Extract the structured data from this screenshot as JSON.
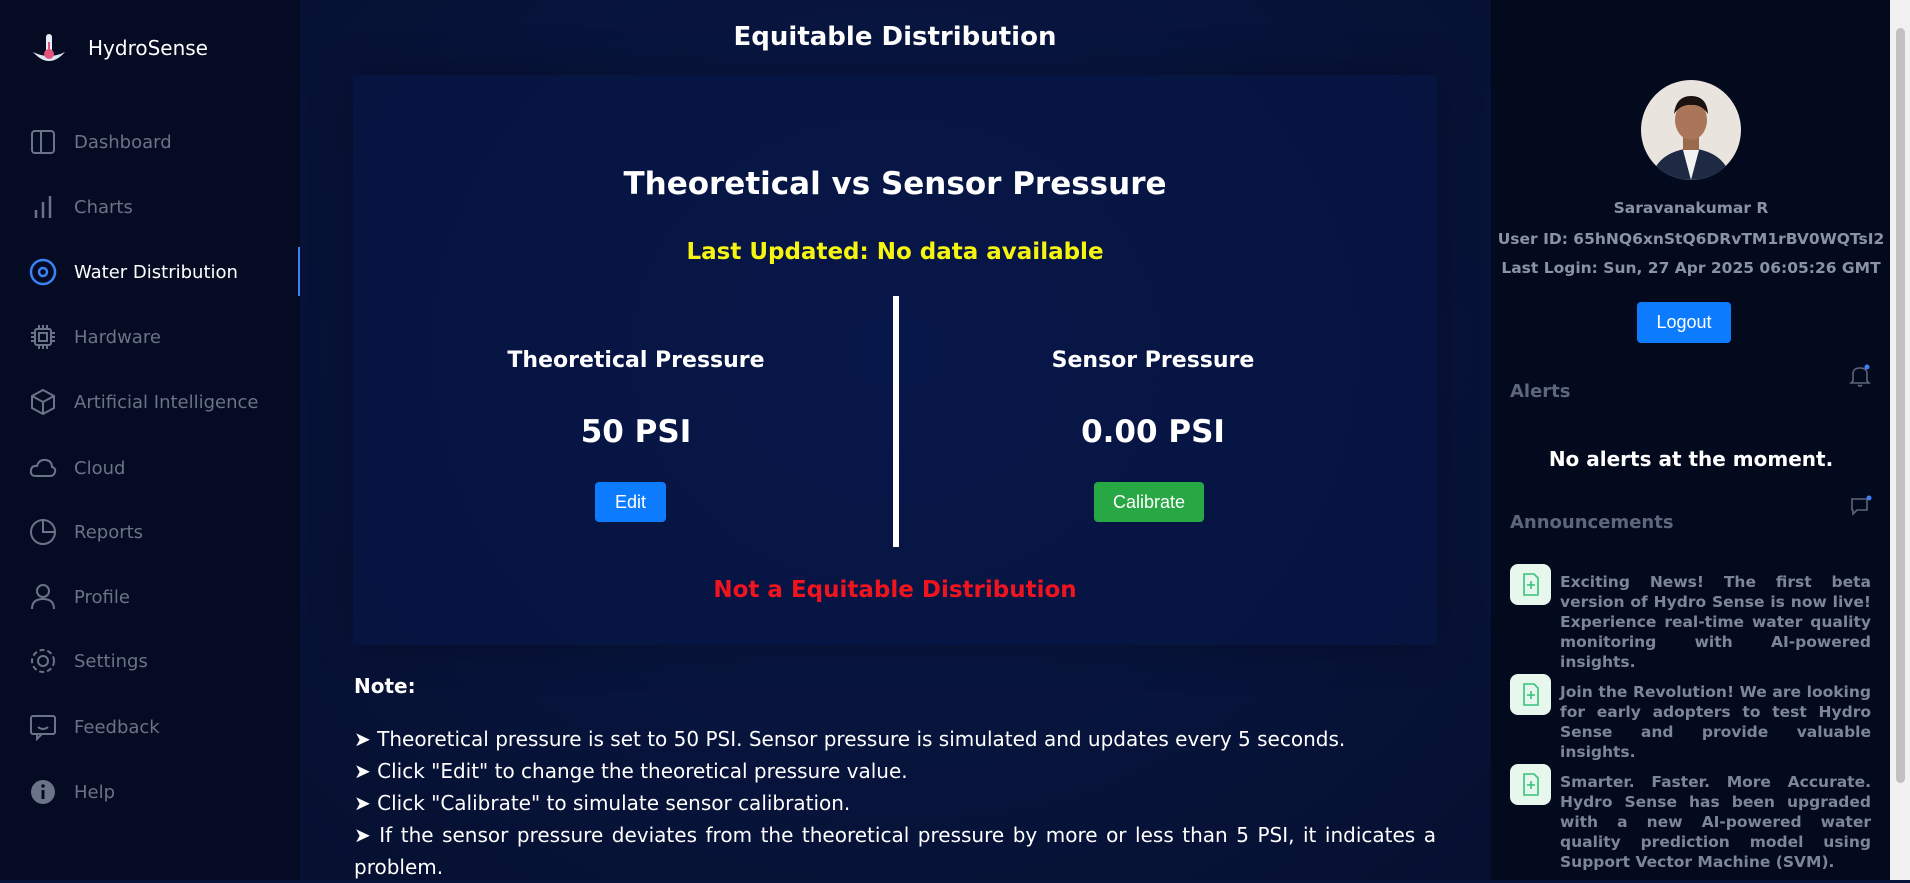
{
  "sidebar": {
    "brand": "HydroSense",
    "nav": [
      "Dashboard",
      "Charts",
      "Water Distribution",
      "Hardware",
      "Artificial Intelligence",
      "Cloud",
      "Reports",
      "Profile",
      "Settings",
      "Feedback",
      "Help"
    ],
    "active": 2
  },
  "main": {
    "title": "Equitable Distribution",
    "card_title": "Theoretical vs Sensor Pressure",
    "last_updated": "Last Updated: No data available",
    "theoretical": {
      "label": "Theoretical Pressure",
      "value": "50 PSI",
      "button": "Edit"
    },
    "sensor": {
      "label": "Sensor Pressure",
      "value": "0.00 PSI",
      "button": "Calibrate"
    },
    "status": "Not a Equitable Distribution",
    "note_title": "Note:",
    "notes": [
      "➤ Theoretical pressure is set to 50 PSI. Sensor pressure is simulated and updates every 5 seconds.",
      "➤ Click \"Edit\" to change the theoretical pressure value.",
      "➤ Click \"Calibrate\" to simulate sensor calibration.",
      "➤ If the sensor pressure deviates from the theoretical pressure by more or less than 5 PSI, it indicates a problem."
    ]
  },
  "profile": {
    "name": "Saravanakumar R",
    "user_id": "User ID: 65hNQ6xnStQ6DRvTM1rBV0WQTsI2",
    "last_login": "Last Login: Sun, 27 Apr 2025 06:05:26 GMT",
    "logout": "Logout"
  },
  "alerts": {
    "title": "Alerts",
    "empty": "No alerts at the moment."
  },
  "announcements": {
    "title": "Announcements",
    "items": [
      "Exciting News! The first beta version of Hydro Sense is now live! Experience real-time water quality monitoring with AI-powered insights.",
      "Join the Revolution! We are looking for early adopters to test Hydro Sense and provide valuable insights.",
      "Smarter. Faster. More Accurate. Hydro Sense has been upgraded with a new AI-powered water quality prediction model using Support Vector Machine (SVM)."
    ]
  }
}
